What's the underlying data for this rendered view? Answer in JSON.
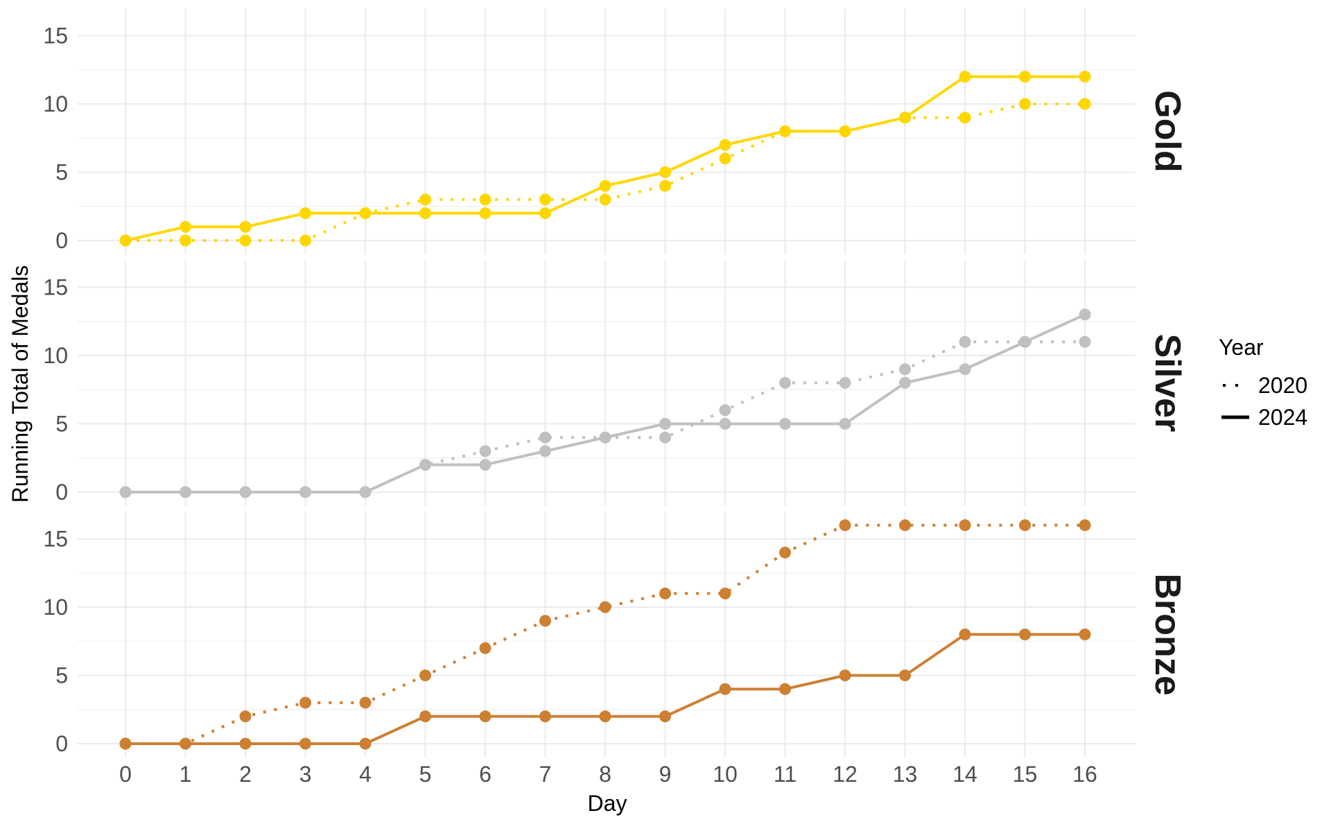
{
  "chart_data": {
    "type": "line",
    "xlabel": "Day",
    "ylabel": "Running Total of Medals",
    "x": [
      0,
      1,
      2,
      3,
      4,
      5,
      6,
      7,
      8,
      9,
      10,
      11,
      12,
      13,
      14,
      15,
      16
    ],
    "x_ticks": [
      "0",
      "1",
      "2",
      "3",
      "4",
      "5",
      "6",
      "7",
      "8",
      "9",
      "10",
      "11",
      "12",
      "13",
      "14",
      "15",
      "16"
    ],
    "y_ticks": [
      "0",
      "5",
      "10",
      "15"
    ],
    "ylim": [
      -0.5,
      16.5
    ],
    "xlim": [
      -0.8,
      16.8
    ],
    "grid": true,
    "legend": {
      "title": "Year",
      "placement": "right",
      "entries": [
        {
          "label": "2020",
          "linestyle": "dotted"
        },
        {
          "label": "2024",
          "linestyle": "solid"
        }
      ]
    },
    "facets": [
      {
        "label": "Gold",
        "color": "#FFD700",
        "series": [
          {
            "name": "2020",
            "linestyle": "dotted",
            "values": [
              0,
              0,
              0,
              0,
              2,
              3,
              3,
              3,
              3,
              4,
              6,
              8,
              8,
              9,
              9,
              10,
              10
            ]
          },
          {
            "name": "2024",
            "linestyle": "solid",
            "values": [
              0,
              1,
              1,
              2,
              2,
              2,
              2,
              2,
              4,
              5,
              7,
              8,
              8,
              9,
              12,
              12,
              12
            ]
          }
        ]
      },
      {
        "label": "Silver",
        "color": "#C0C0C0",
        "series": [
          {
            "name": "2020",
            "linestyle": "dotted",
            "values": [
              0,
              0,
              0,
              0,
              0,
              2,
              3,
              4,
              4,
              4,
              6,
              8,
              8,
              9,
              11,
              11,
              11
            ]
          },
          {
            "name": "2024",
            "linestyle": "solid",
            "values": [
              0,
              0,
              0,
              0,
              0,
              2,
              2,
              3,
              4,
              5,
              5,
              5,
              5,
              8,
              9,
              11,
              13
            ]
          }
        ]
      },
      {
        "label": "Bronze",
        "color": "#CD7F32",
        "series": [
          {
            "name": "2020",
            "linestyle": "dotted",
            "values": [
              0,
              0,
              2,
              3,
              3,
              5,
              7,
              9,
              10,
              11,
              11,
              14,
              16,
              16,
              16,
              16,
              16
            ]
          },
          {
            "name": "2024",
            "linestyle": "solid",
            "values": [
              0,
              0,
              0,
              0,
              0,
              2,
              2,
              2,
              2,
              2,
              4,
              4,
              5,
              5,
              8,
              8,
              8
            ]
          }
        ]
      }
    ]
  }
}
